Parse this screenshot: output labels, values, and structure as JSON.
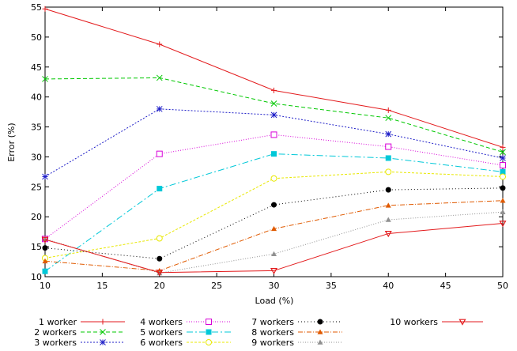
{
  "chart_data": {
    "type": "line",
    "title": "",
    "xlabel": "Load (%)",
    "ylabel": "Error (%)",
    "xlim": [
      10,
      50
    ],
    "ylim": [
      10,
      55
    ],
    "xticks": [
      "10",
      "15",
      "20",
      "25",
      "30",
      "35",
      "40",
      "45",
      "50"
    ],
    "yticks": [
      "10",
      "15",
      "20",
      "25",
      "30",
      "35",
      "40",
      "45",
      "50",
      "55"
    ],
    "grid": false,
    "legend_position": "bottom",
    "x": [
      10,
      20,
      30,
      40,
      50
    ],
    "series": [
      {
        "name": "1 worker",
        "color": "#e31a1c",
        "marker": "plus",
        "dash": "",
        "values": [
          54.7,
          48.8,
          41.1,
          37.8,
          31.6
        ]
      },
      {
        "name": "2 workers",
        "color": "#00c800",
        "marker": "cross",
        "dash": "5,3",
        "values": [
          43.0,
          43.2,
          38.9,
          36.5,
          30.8
        ]
      },
      {
        "name": "3 workers",
        "color": "#1f1fc8",
        "marker": "star",
        "dash": "2,2",
        "values": [
          26.7,
          38.0,
          37.0,
          33.8,
          29.8
        ]
      },
      {
        "name": "4 workers",
        "color": "#d800d8",
        "marker": "open-square",
        "dash": "1,2",
        "values": [
          16.3,
          30.5,
          33.7,
          31.7,
          28.6
        ]
      },
      {
        "name": "5 workers",
        "color": "#00c8d8",
        "marker": "filled-square",
        "dash": "8,3,2,3",
        "values": [
          10.9,
          24.7,
          30.5,
          29.8,
          27.5
        ]
      },
      {
        "name": "6 workers",
        "color": "#e8e800",
        "marker": "open-circle",
        "dash": "3,2",
        "values": [
          13.1,
          16.4,
          26.4,
          27.5,
          26.7
        ]
      },
      {
        "name": "7 workers",
        "color": "#000000",
        "marker": "filled-circle",
        "dash": "1,3",
        "values": [
          14.8,
          13.0,
          22.0,
          24.5,
          24.8
        ]
      },
      {
        "name": "8 workers",
        "color": "#e05a00",
        "marker": "triangle-up",
        "dash": "6,2,1,2",
        "values": [
          12.6,
          11.0,
          18.0,
          21.9,
          22.7
        ]
      },
      {
        "name": "9 workers",
        "color": "#909090",
        "marker": "triangle-up",
        "dash": "1,2",
        "values": [
          16.3,
          10.6,
          13.8,
          19.5,
          20.8
        ]
      },
      {
        "name": "10 workers",
        "color": "#e31a1c",
        "marker": "triangle-down",
        "dash": "",
        "values": [
          16.2,
          10.7,
          11.0,
          17.2,
          18.9
        ]
      }
    ]
  }
}
